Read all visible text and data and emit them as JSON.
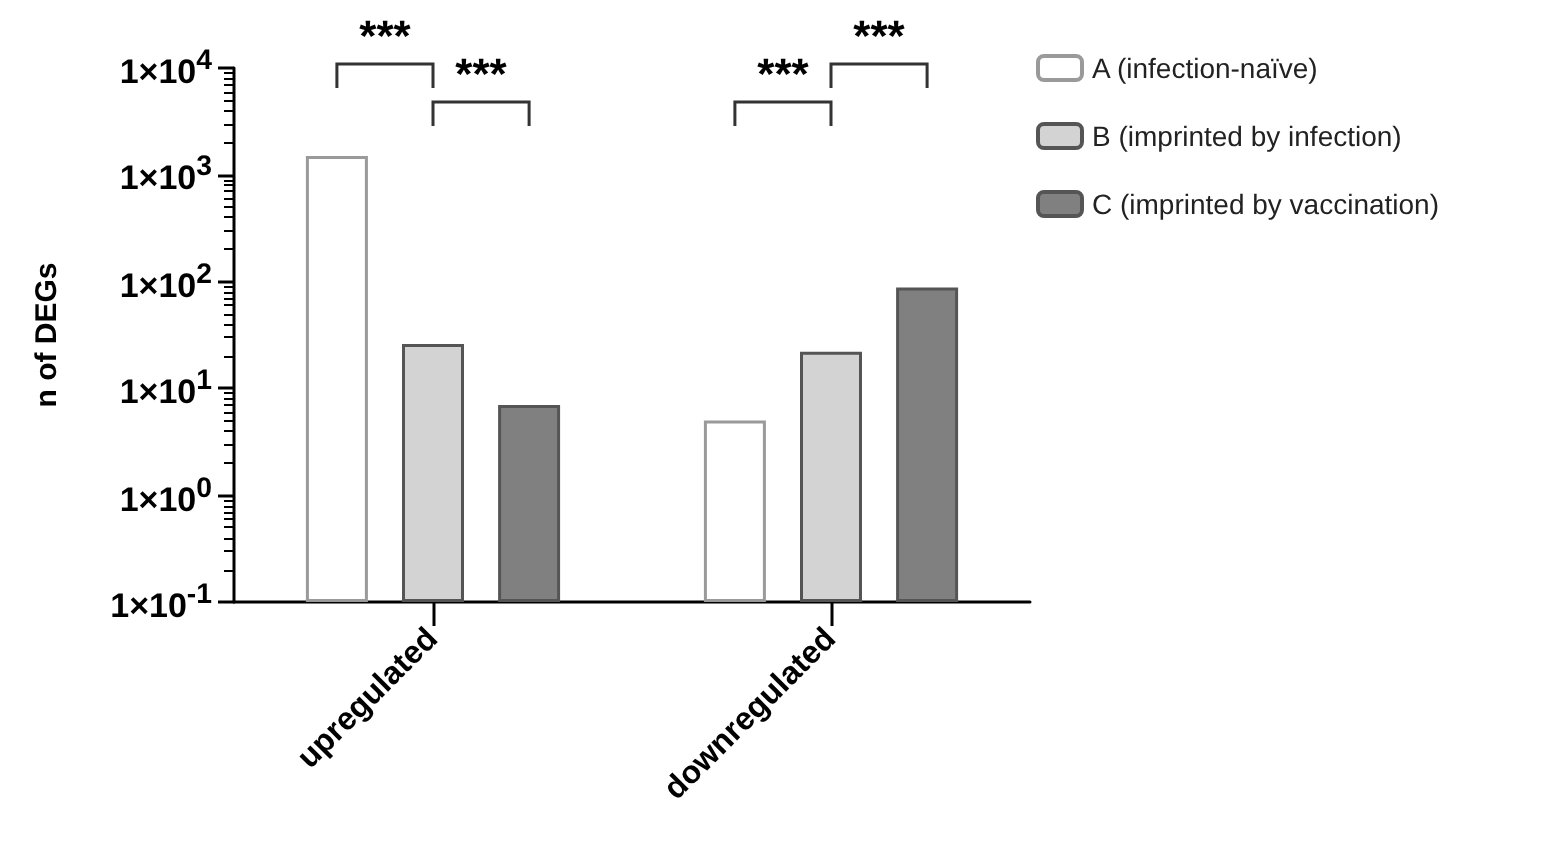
{
  "chart_data": {
    "type": "bar",
    "ylabel": "n of DEGs",
    "log": true,
    "categories": [
      "upregulated",
      "downregulated"
    ],
    "series": [
      {
        "name": "A (infection-naïve)",
        "color": "#ffffff",
        "values": [
          1500,
          5
        ]
      },
      {
        "name": "B (imprinted by infection)",
        "color": "#d3d3d3",
        "values": [
          26,
          22
        ]
      },
      {
        "name": "C (imprinted by vaccination)",
        "color": "#808080",
        "values": [
          7,
          88
        ]
      }
    ],
    "ylim": [
      0.1,
      10000
    ],
    "yticks": [
      {
        "value": 0.1,
        "label": "1×10$^{-1}$"
      },
      {
        "value": 1,
        "label": "1×10$^{0}$"
      },
      {
        "value": 10,
        "label": "1×10$^{1}$"
      },
      {
        "value": 100,
        "label": "1×10$^{2}$"
      },
      {
        "value": 1000,
        "label": "1×10$^{3}$"
      },
      {
        "value": 10000,
        "label": "1×10$^{4}$"
      }
    ],
    "annotations": [
      "***",
      "***",
      "***",
      "***"
    ],
    "grid": false,
    "legend": "top right"
  }
}
